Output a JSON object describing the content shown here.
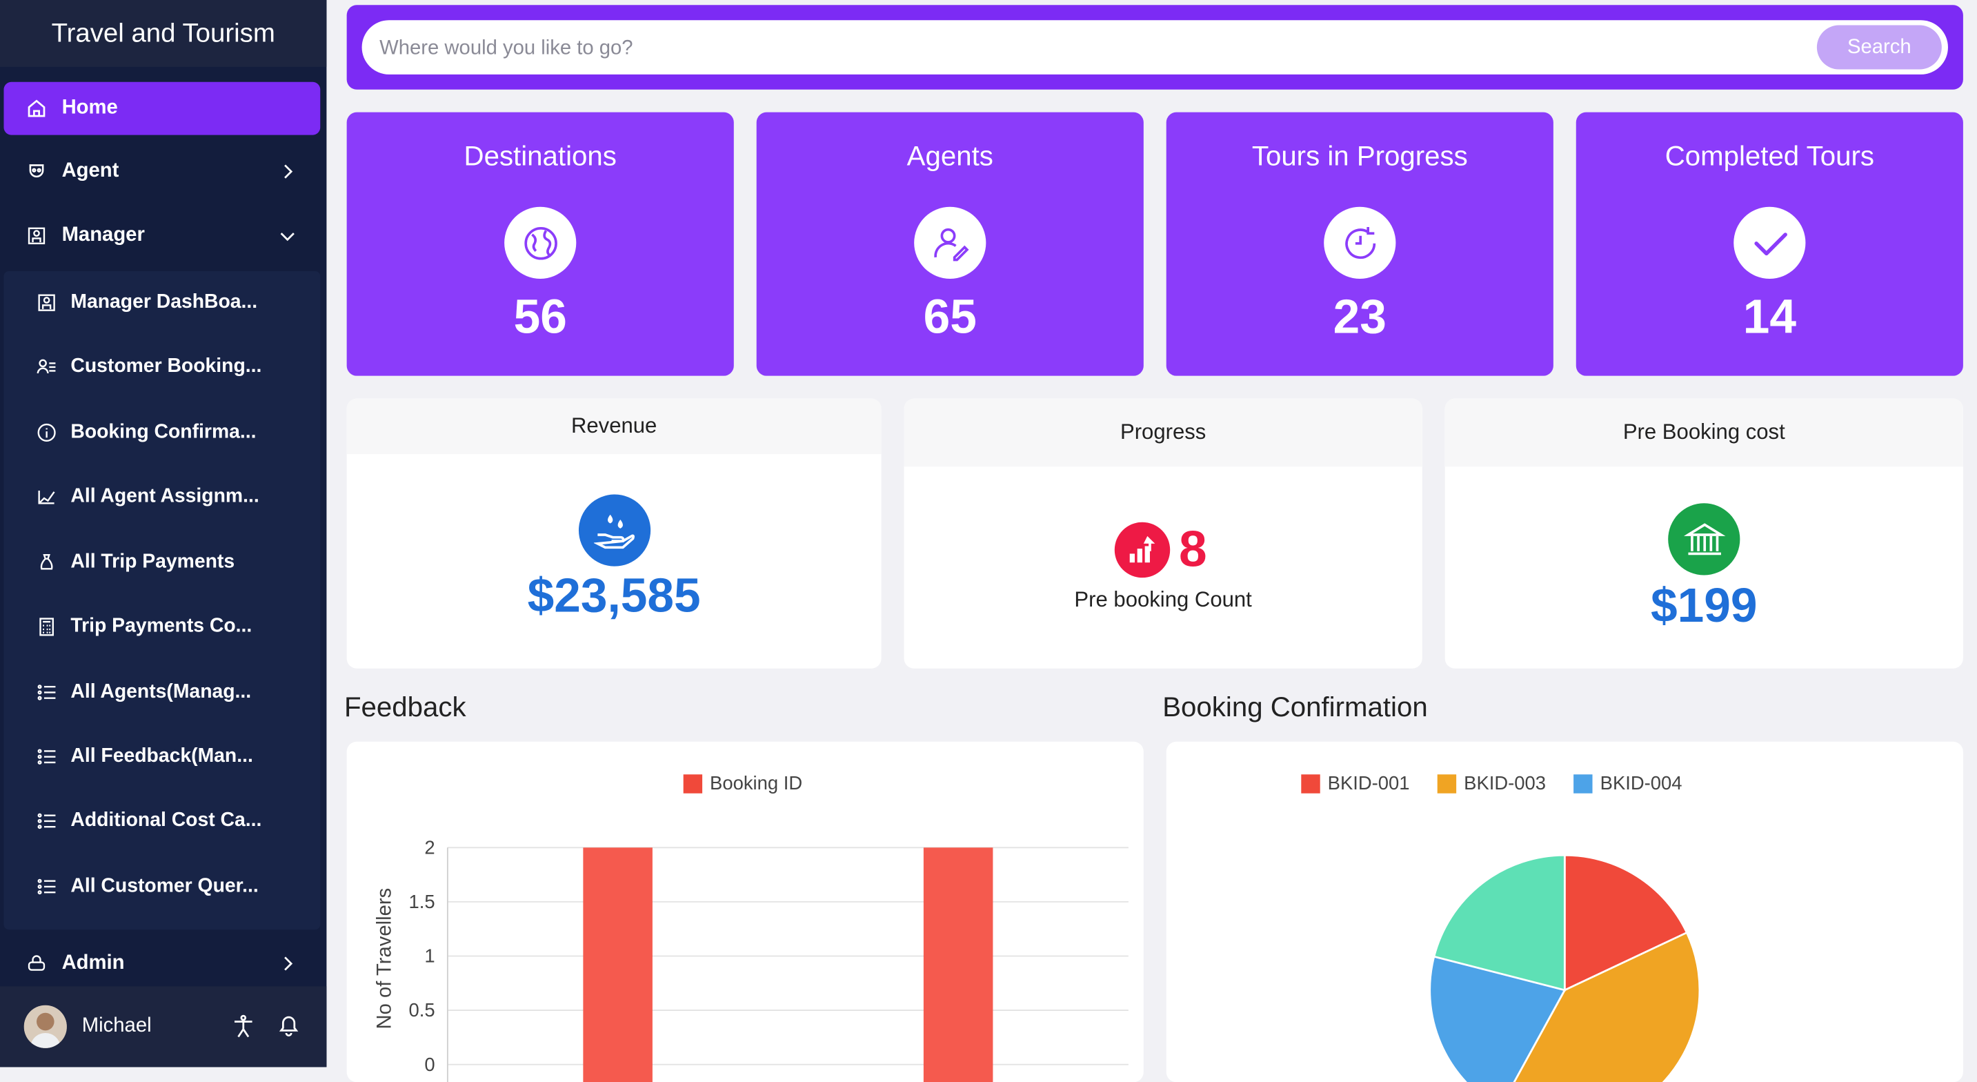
{
  "app": {
    "title": "Travel and Tourism"
  },
  "sidebar": {
    "home": "Home",
    "agent": "Agent",
    "manager": "Manager",
    "manager_items": [
      "Manager DashBoa...",
      "Customer Booking...",
      "Booking Confirma...",
      "All Agent Assignm...",
      "All Trip Payments",
      "Trip Payments Co...",
      "All Agents(Manag...",
      "All Feedback(Man...",
      "Additional Cost Ca...",
      "All Customer Quer..."
    ],
    "admin": "Admin",
    "user_name": "Michael"
  },
  "search": {
    "placeholder": "Where would you like to go?",
    "button": "Search"
  },
  "stats": [
    {
      "title": "Destinations",
      "value": "56",
      "icon": "globe-icon"
    },
    {
      "title": "Agents",
      "value": "65",
      "icon": "user-edit-icon"
    },
    {
      "title": "Tours in Progress",
      "value": "23",
      "icon": "clock-refresh-icon"
    },
    {
      "title": "Completed Tours",
      "value": "14",
      "icon": "check-icon"
    }
  ],
  "cards": {
    "revenue": {
      "title": "Revenue",
      "value": "$23,585",
      "icon": "hand-drops-icon"
    },
    "progress": {
      "title": "Progress",
      "value": "8",
      "label": "Pre booking Count",
      "icon": "chart-up-icon"
    },
    "prebooking": {
      "title": "Pre Booking cost",
      "value": "$199",
      "icon": "bank-icon"
    }
  },
  "sections": {
    "feedback": "Feedback",
    "booking": "Booking Confirmation"
  },
  "colors": {
    "accent": "#7c2bf4",
    "stat_bg": "#8b3cfa",
    "sidebar": "#131d3d",
    "revenue_blue": "#1f6fd8",
    "progress_red": "#ee1a45",
    "bank_green": "#1aa34a"
  },
  "chart_data": [
    {
      "type": "bar",
      "title": "",
      "ylabel": "No of Travellers",
      "xlabel": "",
      "ylim": [
        0,
        2
      ],
      "yticks": [
        "2",
        "1.5",
        "1",
        "0.5",
        "0"
      ],
      "series": [
        {
          "name": "Booking ID",
          "color": "#f55a4e",
          "values": [
            2,
            2
          ]
        }
      ],
      "categories": [
        "",
        ""
      ]
    },
    {
      "type": "pie",
      "legend": [
        {
          "name": "BKID-001",
          "color": "#f0493a"
        },
        {
          "name": "BKID-003",
          "color": "#f0a423"
        },
        {
          "name": "BKID-004",
          "color": "#4da3e8"
        }
      ],
      "slices": [
        {
          "name": "BKID-001",
          "value": 18,
          "color": "#f0493a"
        },
        {
          "name": "BKID-003",
          "value": 40,
          "color": "#f0a423"
        },
        {
          "name": "BKID-004",
          "value": 21,
          "color": "#4da3e8"
        },
        {
          "name": "",
          "value": 21,
          "color": "#5ee0b5"
        }
      ]
    }
  ]
}
